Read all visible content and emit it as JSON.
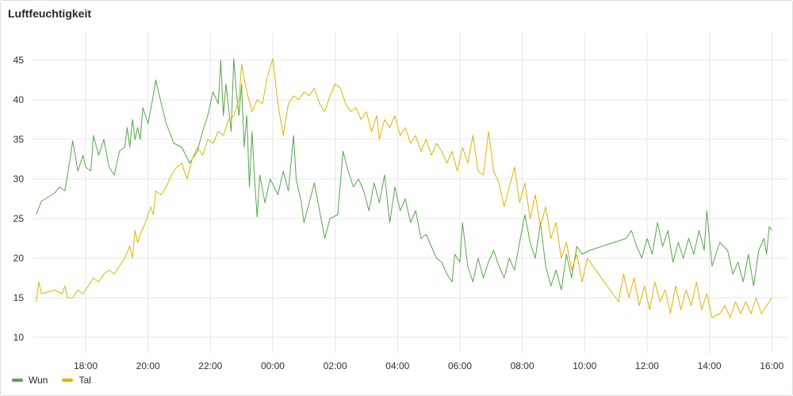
{
  "panel": {
    "title": "Luftfeuchtigkeit"
  },
  "colors": {
    "grid": "#e6e7e9",
    "axis_text": "#2c3137"
  },
  "chart_data": {
    "type": "line",
    "title": "Luftfeuchtigkeit",
    "xlabel": "",
    "ylabel": "",
    "x_unit": "hours",
    "x_range": [
      16.25,
      16.1
    ],
    "x_ticks": [
      "18:00",
      "20:00",
      "22:00",
      "00:00",
      "02:00",
      "04:00",
      "06:00",
      "08:00",
      "10:00",
      "12:00",
      "14:00",
      "16:00"
    ],
    "y_ticks": [
      10,
      15,
      20,
      25,
      30,
      35,
      40,
      45
    ],
    "ylim": [
      8,
      48.5
    ],
    "grid": true,
    "legend_position": "bottom-left",
    "series": [
      {
        "name": "Wun",
        "color": "#56a64b",
        "points": [
          [
            "16:25",
            25.5
          ],
          [
            "16:35",
            27.2
          ],
          [
            "17:00",
            28.2
          ],
          [
            "17:10",
            29.0
          ],
          [
            "17:20",
            28.5
          ],
          [
            "17:30",
            32.5
          ],
          [
            "17:35",
            34.8
          ],
          [
            "17:40",
            33.0
          ],
          [
            "17:45",
            31.0
          ],
          [
            "17:55",
            33.0
          ],
          [
            "18:00",
            31.5
          ],
          [
            "18:10",
            31.0
          ],
          [
            "18:15",
            35.5
          ],
          [
            "18:25",
            33.0
          ],
          [
            "18:35",
            35.0
          ],
          [
            "18:45",
            31.5
          ],
          [
            "18:55",
            30.5
          ],
          [
            "19:05",
            33.5
          ],
          [
            "19:15",
            34.0
          ],
          [
            "19:20",
            36.5
          ],
          [
            "19:25",
            34.0
          ],
          [
            "19:30",
            37.5
          ],
          [
            "19:35",
            35.0
          ],
          [
            "19:40",
            36.5
          ],
          [
            "19:45",
            35.0
          ],
          [
            "19:50",
            39.0
          ],
          [
            "20:00",
            37.0
          ],
          [
            "20:10",
            40.5
          ],
          [
            "20:15",
            42.5
          ],
          [
            "20:20",
            41.0
          ],
          [
            "20:35",
            37.0
          ],
          [
            "20:50",
            34.5
          ],
          [
            "21:05",
            34.0
          ],
          [
            "21:20",
            32.0
          ],
          [
            "21:35",
            33.5
          ],
          [
            "21:45",
            36.0
          ],
          [
            "21:55",
            38.0
          ],
          [
            "22:05",
            41.0
          ],
          [
            "22:15",
            39.5
          ],
          [
            "22:20",
            45.0
          ],
          [
            "22:25",
            38.0
          ],
          [
            "22:30",
            42.0
          ],
          [
            "22:40",
            36.0
          ],
          [
            "22:45",
            45.2
          ],
          [
            "22:50",
            41.0
          ],
          [
            "22:55",
            38.0
          ],
          [
            "23:00",
            42.0
          ],
          [
            "23:05",
            34.0
          ],
          [
            "23:10",
            38.0
          ],
          [
            "23:15",
            29.0
          ],
          [
            "23:20",
            36.0
          ],
          [
            "23:25",
            30.0
          ],
          [
            "23:30",
            25.2
          ],
          [
            "23:35",
            30.5
          ],
          [
            "23:45",
            27.0
          ],
          [
            "23:55",
            30.0
          ],
          [
            "00:10",
            28.0
          ],
          [
            "00:20",
            31.0
          ],
          [
            "00:30",
            28.5
          ],
          [
            "00:40",
            35.5
          ],
          [
            "00:45",
            30.0
          ],
          [
            "00:55",
            27.0
          ],
          [
            "01:00",
            24.5
          ],
          [
            "01:10",
            27.0
          ],
          [
            "01:20",
            29.5
          ],
          [
            "01:30",
            26.0
          ],
          [
            "01:40",
            22.5
          ],
          [
            "01:50",
            25.0
          ],
          [
            "02:05",
            25.5
          ],
          [
            "02:15",
            33.5
          ],
          [
            "02:25",
            31.0
          ],
          [
            "02:35",
            29.0
          ],
          [
            "02:45",
            30.0
          ],
          [
            "02:55",
            28.5
          ],
          [
            "03:05",
            26.0
          ],
          [
            "03:15",
            29.5
          ],
          [
            "03:25",
            27.0
          ],
          [
            "03:35",
            30.5
          ],
          [
            "03:45",
            24.5
          ],
          [
            "03:55",
            29.0
          ],
          [
            "04:05",
            26.0
          ],
          [
            "04:15",
            27.5
          ],
          [
            "04:25",
            24.5
          ],
          [
            "04:35",
            26.0
          ],
          [
            "04:45",
            22.5
          ],
          [
            "04:55",
            23.0
          ],
          [
            "05:05",
            21.5
          ],
          [
            "05:15",
            20.0
          ],
          [
            "05:25",
            19.5
          ],
          [
            "05:35",
            18.0
          ],
          [
            "05:45",
            17.0
          ],
          [
            "05:50",
            20.5
          ],
          [
            "06:00",
            19.5
          ],
          [
            "06:05",
            24.5
          ],
          [
            "06:15",
            19.0
          ],
          [
            "06:25",
            17.0
          ],
          [
            "06:35",
            20.0
          ],
          [
            "06:45",
            17.5
          ],
          [
            "06:55",
            19.5
          ],
          [
            "07:05",
            21.0
          ],
          [
            "07:15",
            19.0
          ],
          [
            "07:25",
            17.5
          ],
          [
            "07:35",
            20.0
          ],
          [
            "07:45",
            18.5
          ],
          [
            "07:55",
            22.0
          ],
          [
            "08:05",
            25.5
          ],
          [
            "08:15",
            22.0
          ],
          [
            "08:25",
            20.0
          ],
          [
            "08:35",
            24.5
          ],
          [
            "08:45",
            19.0
          ],
          [
            "08:55",
            16.5
          ],
          [
            "09:05",
            18.5
          ],
          [
            "09:15",
            16.0
          ],
          [
            "09:25",
            20.5
          ],
          [
            "09:35",
            17.5
          ],
          [
            "09:45",
            21.5
          ],
          [
            "09:55",
            20.5
          ],
          [
            "10:10",
            21.0
          ],
          [
            "11:20",
            22.5
          ],
          [
            "11:30",
            23.5
          ],
          [
            "11:40",
            21.5
          ],
          [
            "11:50",
            20.0
          ],
          [
            "12:00",
            22.5
          ],
          [
            "12:10",
            20.5
          ],
          [
            "12:20",
            24.5
          ],
          [
            "12:30",
            21.5
          ],
          [
            "12:40",
            23.5
          ],
          [
            "12:50",
            19.5
          ],
          [
            "13:00",
            22.0
          ],
          [
            "13:10",
            20.0
          ],
          [
            "13:20",
            22.5
          ],
          [
            "13:30",
            20.5
          ],
          [
            "13:40",
            23.5
          ],
          [
            "13:50",
            21.0
          ],
          [
            "13:55",
            26.0
          ],
          [
            "14:05",
            19.0
          ],
          [
            "14:20",
            22.0
          ],
          [
            "14:35",
            21.0
          ],
          [
            "14:45",
            18.0
          ],
          [
            "14:55",
            19.5
          ],
          [
            "15:05",
            17.0
          ],
          [
            "15:15",
            20.5
          ],
          [
            "15:25",
            16.5
          ],
          [
            "15:35",
            21.0
          ],
          [
            "15:45",
            22.5
          ],
          [
            "15:50",
            20.5
          ],
          [
            "15:55",
            24.0
          ],
          [
            "16:00",
            23.5
          ]
        ]
      },
      {
        "name": "Tal",
        "color": "#e0b400",
        "points": [
          [
            "16:25",
            14.5
          ],
          [
            "16:30",
            17.0
          ],
          [
            "16:35",
            15.5
          ],
          [
            "17:00",
            16.0
          ],
          [
            "17:15",
            15.5
          ],
          [
            "17:20",
            16.5
          ],
          [
            "17:25",
            15.0
          ],
          [
            "17:35",
            15.0
          ],
          [
            "17:45",
            16.0
          ],
          [
            "17:55",
            15.5
          ],
          [
            "18:05",
            16.5
          ],
          [
            "18:15",
            17.5
          ],
          [
            "18:25",
            17.0
          ],
          [
            "18:35",
            18.0
          ],
          [
            "18:45",
            18.5
          ],
          [
            "18:55",
            18.0
          ],
          [
            "19:05",
            19.0
          ],
          [
            "19:15",
            20.0
          ],
          [
            "19:25",
            21.5
          ],
          [
            "19:30",
            20.0
          ],
          [
            "19:35",
            23.5
          ],
          [
            "19:40",
            22.0
          ],
          [
            "19:45",
            23.0
          ],
          [
            "19:55",
            24.5
          ],
          [
            "20:05",
            26.5
          ],
          [
            "20:10",
            25.5
          ],
          [
            "20:15",
            28.5
          ],
          [
            "20:25",
            28.0
          ],
          [
            "20:35",
            29.0
          ],
          [
            "20:45",
            30.5
          ],
          [
            "20:55",
            31.5
          ],
          [
            "21:05",
            32.0
          ],
          [
            "21:15",
            30.0
          ],
          [
            "21:25",
            32.5
          ],
          [
            "21:35",
            34.0
          ],
          [
            "21:45",
            33.0
          ],
          [
            "21:55",
            35.0
          ],
          [
            "22:05",
            34.5
          ],
          [
            "22:15",
            36.0
          ],
          [
            "22:25",
            35.5
          ],
          [
            "22:35",
            37.5
          ],
          [
            "22:45",
            38.0
          ],
          [
            "22:55",
            40.0
          ],
          [
            "23:00",
            44.5
          ],
          [
            "23:10",
            41.0
          ],
          [
            "23:20",
            38.5
          ],
          [
            "23:30",
            40.0
          ],
          [
            "23:40",
            39.5
          ],
          [
            "23:50",
            43.0
          ],
          [
            "00:00",
            45.2
          ],
          [
            "00:10",
            39.5
          ],
          [
            "00:20",
            35.5
          ],
          [
            "00:30",
            39.5
          ],
          [
            "00:40",
            40.5
          ],
          [
            "00:50",
            40.0
          ],
          [
            "01:00",
            41.0
          ],
          [
            "01:10",
            40.5
          ],
          [
            "01:20",
            41.5
          ],
          [
            "01:30",
            39.5
          ],
          [
            "01:40",
            38.5
          ],
          [
            "01:50",
            40.5
          ],
          [
            "02:00",
            42.0
          ],
          [
            "02:10",
            41.5
          ],
          [
            "02:20",
            39.5
          ],
          [
            "02:30",
            38.5
          ],
          [
            "02:40",
            39.0
          ],
          [
            "02:50",
            37.5
          ],
          [
            "03:00",
            38.5
          ],
          [
            "03:10",
            36.0
          ],
          [
            "03:20",
            38.0
          ],
          [
            "03:25",
            35.0
          ],
          [
            "03:35",
            37.5
          ],
          [
            "03:45",
            36.5
          ],
          [
            "03:55",
            38.0
          ],
          [
            "04:05",
            35.5
          ],
          [
            "04:15",
            36.5
          ],
          [
            "04:25",
            34.5
          ],
          [
            "04:35",
            35.5
          ],
          [
            "04:45",
            33.5
          ],
          [
            "04:55",
            35.0
          ],
          [
            "05:05",
            33.0
          ],
          [
            "05:15",
            34.5
          ],
          [
            "05:25",
            33.5
          ],
          [
            "05:35",
            32.0
          ],
          [
            "05:45",
            33.5
          ],
          [
            "05:55",
            31.0
          ],
          [
            "06:05",
            34.0
          ],
          [
            "06:15",
            32.0
          ],
          [
            "06:25",
            35.5
          ],
          [
            "06:35",
            31.0
          ],
          [
            "06:45",
            30.5
          ],
          [
            "06:55",
            36.0
          ],
          [
            "07:05",
            31.0
          ],
          [
            "07:15",
            29.5
          ],
          [
            "07:25",
            26.5
          ],
          [
            "07:35",
            29.0
          ],
          [
            "07:45",
            31.5
          ],
          [
            "07:55",
            27.0
          ],
          [
            "08:05",
            29.5
          ],
          [
            "08:15",
            25.0
          ],
          [
            "08:25",
            28.0
          ],
          [
            "08:35",
            24.0
          ],
          [
            "08:45",
            26.5
          ],
          [
            "08:55",
            22.5
          ],
          [
            "09:05",
            24.5
          ],
          [
            "09:15",
            20.0
          ],
          [
            "09:25",
            22.0
          ],
          [
            "09:35",
            18.5
          ],
          [
            "09:45",
            20.5
          ],
          [
            "09:55",
            17.0
          ],
          [
            "10:05",
            20.0
          ],
          [
            "11:05",
            14.5
          ],
          [
            "11:15",
            18.0
          ],
          [
            "11:25",
            15.0
          ],
          [
            "11:35",
            17.5
          ],
          [
            "11:45",
            14.0
          ],
          [
            "11:55",
            16.5
          ],
          [
            "12:05",
            13.5
          ],
          [
            "12:15",
            17.0
          ],
          [
            "12:25",
            14.5
          ],
          [
            "12:35",
            16.0
          ],
          [
            "12:45",
            13.0
          ],
          [
            "12:55",
            16.5
          ],
          [
            "13:05",
            13.5
          ],
          [
            "13:15",
            16.0
          ],
          [
            "13:25",
            14.0
          ],
          [
            "13:35",
            17.0
          ],
          [
            "13:45",
            13.5
          ],
          [
            "13:55",
            15.5
          ],
          [
            "14:05",
            12.5
          ],
          [
            "14:20",
            13.0
          ],
          [
            "14:30",
            14.0
          ],
          [
            "14:40",
            12.5
          ],
          [
            "14:50",
            14.5
          ],
          [
            "15:00",
            13.0
          ],
          [
            "15:10",
            14.5
          ],
          [
            "15:20",
            13.0
          ],
          [
            "15:30",
            15.0
          ],
          [
            "15:40",
            13.0
          ],
          [
            "15:50",
            14.0
          ],
          [
            "16:00",
            15.0
          ]
        ]
      }
    ]
  }
}
